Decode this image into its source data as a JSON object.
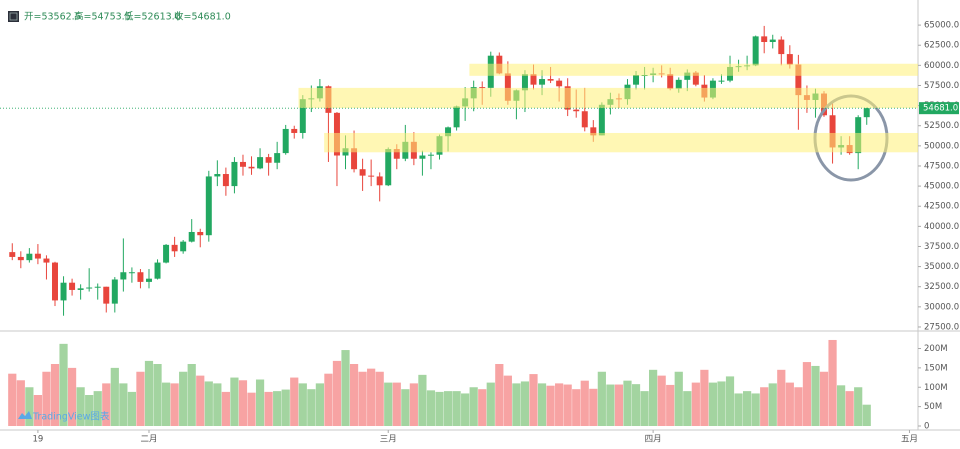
{
  "chart_data": {
    "type": "candlestick",
    "header": [
      "开=53562.5",
      "高=54753.5",
      "低=52613.0",
      "收=54681.0"
    ],
    "last_price_label": "54681.0",
    "watermark": "TradingView图表",
    "up_color": "#22a861",
    "down_color": "#e8453c",
    "grid": false,
    "xlim": [
      -0.5,
      106
    ],
    "xticks": [
      {
        "value": 3,
        "label": "19"
      },
      {
        "value": 16,
        "label": "二月"
      },
      {
        "value": 44,
        "label": "三月"
      },
      {
        "value": 75,
        "label": "四月"
      },
      {
        "value": 105,
        "label": "五月"
      }
    ],
    "ylim": [
      27000,
      67000
    ],
    "yticks": [
      {
        "value": 27500,
        "label": "27500.0"
      },
      {
        "value": 30000,
        "label": "30000.0"
      },
      {
        "value": 32500,
        "label": "32500.0"
      },
      {
        "value": 35000,
        "label": "35000.0"
      },
      {
        "value": 37500,
        "label": "37500.0"
      },
      {
        "value": 40000,
        "label": "40000.0"
      },
      {
        "value": 42500,
        "label": "42500.0"
      },
      {
        "value": 45000,
        "label": "45000.0"
      },
      {
        "value": 47500,
        "label": "47500.0"
      },
      {
        "value": 50000,
        "label": "50000.0"
      },
      {
        "value": 52500,
        "label": "52500.0"
      },
      {
        "value": 55000,
        "label": "55000.0"
      },
      {
        "value": 57500,
        "label": "57500.0"
      },
      {
        "value": 60000,
        "label": "60000.0"
      },
      {
        "value": 62500,
        "label": "62500.0"
      },
      {
        "value": 65000,
        "label": "65000.0"
      }
    ],
    "zone_color": "#fff176",
    "zones": [
      {
        "from": 54700,
        "to": 57200,
        "start": 34
      },
      {
        "from": 49200,
        "to": 51600,
        "start": 37
      },
      {
        "from": 58700,
        "to": 60200,
        "start": 54
      }
    ],
    "open": [
      36800,
      36200,
      35800,
      36600,
      36000,
      35500,
      30800,
      33000,
      32100,
      32300,
      32400,
      32500,
      30400,
      33400,
      34200,
      34300,
      33100,
      33500,
      35500,
      37700,
      36900,
      38100,
      39300,
      38900,
      46200,
      46500,
      45000,
      48000,
      47400,
      47200,
      48600,
      47900,
      49100,
      52100,
      51600,
      55800,
      55900,
      57400,
      54100,
      48800,
      49700,
      47100,
      46300,
      46200,
      45100,
      49600,
      48400,
      50500,
      48400,
      48800,
      48900,
      51200,
      52300,
      54900,
      55900,
      57300,
      57200,
      61200,
      59000,
      55600,
      56900,
      58900,
      57600,
      58300,
      58100,
      57400,
      54500,
      54300,
      52300,
      51300,
      55100,
      55900,
      55800,
      57600,
      58700,
      58800,
      59000,
      58900,
      57100,
      58200,
      59100,
      57600,
      56000,
      58000,
      58100,
      59800,
      59900,
      60000,
      63600,
      62900,
      63200,
      61400,
      60100,
      56300,
      55700,
      56500,
      53800,
      49800,
      50100,
      49100,
      53562.5
    ],
    "high": [
      37900,
      36900,
      37300,
      37800,
      36400,
      35600,
      33800,
      33500,
      32800,
      34800,
      32900,
      32500,
      33700,
      38500,
      34900,
      34700,
      34700,
      35900,
      37800,
      38700,
      38300,
      40900,
      39700,
      46900,
      48200,
      47300,
      48600,
      48900,
      48700,
      49700,
      49000,
      50500,
      52600,
      52500,
      56300,
      57500,
      58300,
      57500,
      54200,
      51300,
      51900,
      48400,
      48300,
      46700,
      49800,
      50200,
      52600,
      51700,
      49400,
      49200,
      51400,
      52400,
      55000,
      57300,
      58100,
      58000,
      61700,
      61600,
      60500,
      57000,
      59400,
      60100,
      59400,
      59800,
      58400,
      58400,
      57000,
      57200,
      53200,
      55400,
      56600,
      56500,
      58300,
      59300,
      59800,
      59700,
      60000,
      59700,
      58500,
      59500,
      59300,
      58800,
      58400,
      58900,
      61200,
      60700,
      61200,
      63700,
      64900,
      63800,
      63600,
      62500,
      61300,
      57500,
      57100,
      56800,
      55400,
      51200,
      51200,
      53800,
      54753.5
    ],
    "low": [
      35800,
      34800,
      35500,
      35300,
      33400,
      30100,
      28900,
      31400,
      30900,
      31900,
      30900,
      29300,
      29300,
      31900,
      33000,
      32300,
      32300,
      33400,
      35400,
      36200,
      36600,
      38000,
      37400,
      38100,
      45000,
      43800,
      44100,
      46300,
      46400,
      47100,
      46300,
      47100,
      48900,
      50900,
      50900,
      54200,
      55500,
      48000,
      45000,
      47100,
      46700,
      44400,
      45000,
      43100,
      45000,
      47100,
      48100,
      47600,
      46300,
      47100,
      48300,
      49300,
      51900,
      53100,
      54300,
      55100,
      56100,
      58900,
      55100,
      53300,
      54200,
      57000,
      56300,
      57800,
      55500,
      53700,
      53500,
      51800,
      50500,
      51300,
      53900,
      54700,
      55100,
      57000,
      57000,
      57900,
      58500,
      56900,
      56600,
      56800,
      57400,
      55500,
      55800,
      57700,
      57900,
      59200,
      59400,
      59900,
      61500,
      62100,
      60000,
      59600,
      52000,
      54100,
      53500,
      53600,
      47800,
      48900,
      48900,
      47100,
      52613.0
    ],
    "close": [
      36200,
      35800,
      36600,
      36000,
      35500,
      30800,
      33000,
      32100,
      32300,
      32400,
      32500,
      30400,
      33400,
      34300,
      34300,
      33100,
      33500,
      35500,
      37700,
      36900,
      38100,
      39300,
      38900,
      46200,
      46500,
      45000,
      48000,
      47400,
      47200,
      48600,
      47900,
      49100,
      52100,
      51600,
      55800,
      55900,
      57400,
      54100,
      48800,
      49700,
      47100,
      46300,
      46200,
      45100,
      49600,
      48400,
      50500,
      48400,
      48800,
      48900,
      51200,
      52300,
      54900,
      55900,
      57300,
      57200,
      61200,
      59000,
      55600,
      56900,
      58900,
      57600,
      58300,
      58100,
      57400,
      54500,
      54300,
      52300,
      51300,
      55100,
      55800,
      55800,
      57600,
      58800,
      58800,
      59000,
      58900,
      57100,
      58200,
      59100,
      57600,
      56000,
      58100,
      58100,
      59800,
      59900,
      60000,
      63600,
      62900,
      63200,
      61400,
      60100,
      56300,
      55700,
      56500,
      53800,
      49800,
      50100,
      49100,
      53562.5,
      54681.0
    ],
    "volume": {
      "up_color": "#a3d4a0",
      "down_color": "#f7a3a3",
      "ylim": [
        0,
        240
      ],
      "yticks": [
        0,
        {
          "value": 50,
          "label": "50M"
        },
        {
          "value": 100,
          "label": "100M"
        },
        {
          "value": 150,
          "label": "150M"
        },
        {
          "value": 200,
          "label": "200M"
        }
      ],
      "values": [
        135,
        118,
        100,
        80,
        140,
        160,
        212,
        150,
        100,
        80,
        90,
        110,
        150,
        110,
        88,
        140,
        168,
        160,
        112,
        110,
        140,
        160,
        130,
        115,
        110,
        88,
        125,
        118,
        86,
        120,
        88,
        90,
        94,
        125,
        110,
        95,
        110,
        135,
        168,
        196,
        160,
        140,
        148,
        140,
        112,
        112,
        95,
        110,
        132,
        92,
        88,
        90,
        90,
        84,
        100,
        95,
        112,
        160,
        130,
        110,
        115,
        134,
        110,
        104,
        110,
        107,
        95,
        117,
        96,
        140,
        107,
        107,
        117,
        108,
        90,
        145,
        130,
        106,
        140,
        90,
        112,
        145,
        112,
        115,
        128,
        84,
        90,
        84,
        100,
        110,
        145,
        112,
        100,
        165,
        155,
        140,
        222,
        105,
        90,
        100,
        55
      ]
    }
  }
}
